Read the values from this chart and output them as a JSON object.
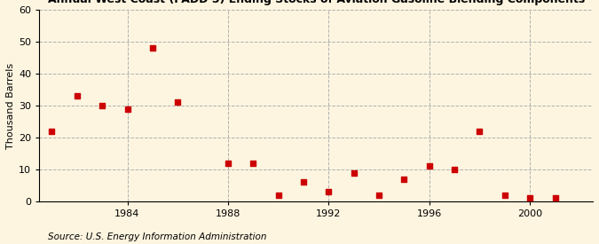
{
  "ylabel": "Thousand Barrels",
  "source": "Source: U.S. Energy Information Administration",
  "background_color": "#fdf5e0",
  "scatter_color": "#cc0000",
  "marker": "s",
  "marker_size": 4,
  "xlim": [
    1980.5,
    2002.5
  ],
  "ylim": [
    0,
    60
  ],
  "yticks": [
    0,
    10,
    20,
    30,
    40,
    50,
    60
  ],
  "xticks": [
    1984,
    1988,
    1992,
    1996,
    2000
  ],
  "years": [
    1981,
    1982,
    1983,
    1984,
    1985,
    1986,
    1988,
    1989,
    1990,
    1991,
    1992,
    1993,
    1994,
    1995,
    1996,
    1997,
    1998,
    1999,
    2000,
    2001
  ],
  "values": [
    22,
    33,
    30,
    29,
    48,
    31,
    12,
    12,
    2,
    6,
    3,
    9,
    2,
    7,
    11,
    10,
    22,
    2,
    1,
    1
  ],
  "grid_color": "#b0b0b0",
  "grid_linestyle": "--",
  "grid_linewidth": 0.7,
  "title_fontsize": 9,
  "ylabel_fontsize": 8,
  "source_fontsize": 7.5,
  "tick_fontsize": 8
}
